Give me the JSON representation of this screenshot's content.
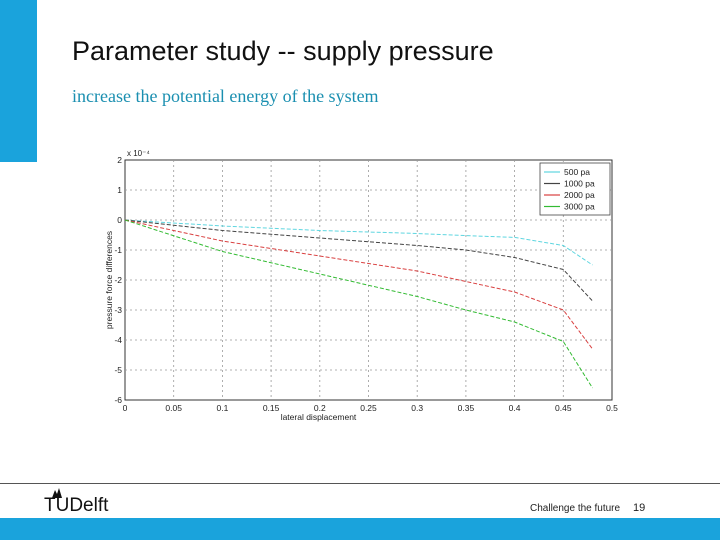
{
  "slide": {
    "title": "Parameter study -- supply pressure",
    "subtitle": "increase the potential energy of the system",
    "footer_tagline": "Challenge the future",
    "page_number": "19",
    "logo_text": "TUDelft",
    "accent_color": "#1aa3dc"
  },
  "chart_data": {
    "type": "line",
    "title": "",
    "xlabel": "lateral displacement",
    "ylabel": "pressure force differences",
    "y_multiplier_label": "x 10⁻⁴",
    "xlim": [
      0,
      0.5
    ],
    "ylim": [
      -6,
      2
    ],
    "xticks": [
      "0",
      "0.05",
      "0.1",
      "0.15",
      "0.2",
      "0.25",
      "0.3",
      "0.35",
      "0.4",
      "0.45",
      "0.5"
    ],
    "yticks": [
      "2",
      "1",
      "0",
      "-1",
      "-2",
      "-3",
      "-4",
      "-5",
      "-6"
    ],
    "grid": true,
    "legend_position": "top-right",
    "x": [
      0,
      0.1,
      0.2,
      0.3,
      0.35,
      0.4,
      0.45,
      0.48
    ],
    "series": [
      {
        "name": "500 pa",
        "color": "#5fd6e0",
        "values": [
          0,
          -0.2,
          -0.35,
          -0.45,
          -0.52,
          -0.58,
          -0.85,
          -1.5
        ]
      },
      {
        "name": "1000 pa",
        "color": "#444444",
        "values": [
          0,
          -0.35,
          -0.6,
          -0.85,
          -1.0,
          -1.25,
          -1.65,
          -2.7
        ]
      },
      {
        "name": "2000 pa",
        "color": "#d94040",
        "values": [
          0,
          -0.7,
          -1.2,
          -1.7,
          -2.05,
          -2.4,
          -3.0,
          -4.3
        ]
      },
      {
        "name": "3000 pa",
        "color": "#33bb33",
        "values": [
          0,
          -1.05,
          -1.8,
          -2.55,
          -3.0,
          -3.4,
          -4.05,
          -5.6
        ]
      }
    ]
  }
}
